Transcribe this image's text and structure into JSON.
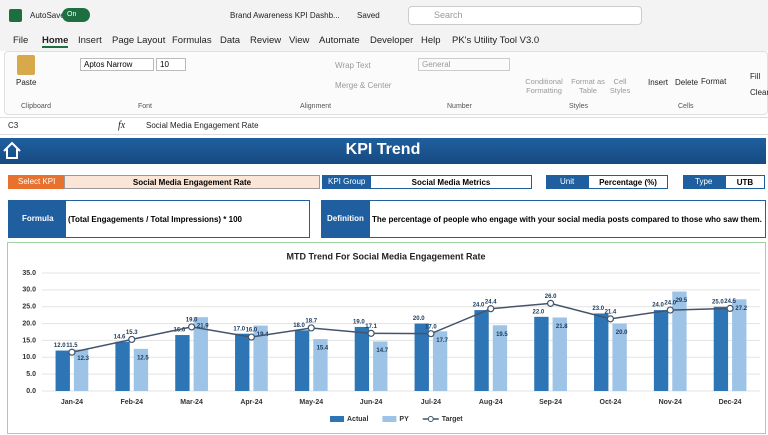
{
  "title_bar": {
    "autosave": "AutoSave",
    "toggle": "On",
    "file_name": "Brand Awareness KPI Dashb...",
    "saved": "Saved",
    "search": "Search"
  },
  "menu": [
    "File",
    "Home",
    "Insert",
    "Page Layout",
    "Formulas",
    "Data",
    "Review",
    "View",
    "Automate",
    "Developer",
    "Help",
    "PK's Utility Tool V3.0"
  ],
  "ribbon": {
    "paste": "Paste",
    "clipboard": "Clipboard",
    "font_name": "Aptos Narrow",
    "font_size": "10",
    "font": "Font",
    "wrap_text": "Wrap Text",
    "merge_center": "Merge & Center",
    "alignment": "Alignment",
    "number_format": "General",
    "number": "Number",
    "conditional_formatting": "Conditional Formatting",
    "format_as_table": "Format as Table",
    "cell_styles": "Cell Styles",
    "styles": "Styles",
    "insert": "Insert",
    "delete": "Delete",
    "format": "Format",
    "cells": "Cells",
    "fill": "Fill",
    "clear": "Clear"
  },
  "formula_bar": {
    "cell": "C3",
    "fx": "fx",
    "content": "Social Media Engagement Rate"
  },
  "dashboard": {
    "title": "KPI Trend",
    "select_kpi_label": "Select KPI",
    "select_kpi": "Social Media Engagement Rate",
    "kpi_group_label": "KPI Group",
    "kpi_group": "Social Media Metrics",
    "unit_label": "Unit",
    "unit": "Percentage (%)",
    "type_label": "Type",
    "type": "UTB",
    "formula_label": "Formula",
    "formula": "(Total Engagements / Total Impressions) * 100",
    "definition_label": "Definition",
    "definition": "The percentage of people who engage with your social media posts compared to those who saw them."
  },
  "chart_data": {
    "type": "bar",
    "title": "MTD Trend For Social Media Engagement Rate",
    "categories": [
      "Jan-24",
      "Feb-24",
      "Mar-24",
      "Apr-24",
      "May-24",
      "Jun-24",
      "Jul-24",
      "Aug-24",
      "Sep-24",
      "Oct-24",
      "Nov-24",
      "Dec-24"
    ],
    "series": [
      {
        "name": "Actual",
        "type": "bar",
        "color": "#2e75b6",
        "values": [
          12.0,
          14.6,
          16.6,
          17.0,
          18.0,
          19.0,
          20.0,
          24.0,
          22.0,
          23.0,
          24.0,
          25.0
        ],
        "value_labels": [
          "12.0",
          "14.6",
          "16.6",
          "17.0",
          "18.0",
          "19.0",
          "20.0",
          "24.0",
          "22.0",
          "23.0",
          "24.0",
          "25.0"
        ]
      },
      {
        "name": "PY",
        "type": "bar",
        "color": "#9dc3e6",
        "values": [
          12.3,
          12.5,
          21.9,
          19.4,
          15.4,
          14.7,
          17.7,
          19.5,
          21.8,
          20.0,
          29.5,
          27.2
        ],
        "value_labels": [
          "12.3",
          "12.5",
          "21.9",
          "19.4",
          "15.4",
          "14.7",
          "17.7",
          "19.5",
          "21.8",
          "20.0",
          "29.5",
          "27.2"
        ]
      },
      {
        "name": "Target",
        "type": "line",
        "color": "#44546a",
        "values": [
          11.5,
          15.3,
          19.0,
          16.0,
          18.7,
          17.1,
          17.0,
          24.4,
          26.0,
          21.4,
          24.0,
          24.5
        ],
        "value_labels": [
          "11.5",
          "15.3",
          "19.0",
          "16.0",
          "18.7",
          "17.1",
          "17.0",
          "24.4",
          "26.0",
          "21.4",
          "24.0",
          "24.5"
        ]
      }
    ],
    "ylim": [
      0,
      35
    ],
    "yticks": [
      {
        "value": 0,
        "label": "0.0"
      },
      {
        "value": 5,
        "label": "5.0"
      },
      {
        "value": 10,
        "label": "10.0"
      },
      {
        "value": 15,
        "label": "15.0"
      },
      {
        "value": 20,
        "label": "20.0"
      },
      {
        "value": 25,
        "label": "25.0"
      },
      {
        "value": 30,
        "label": "30.0"
      },
      {
        "value": 35,
        "label": "35.0"
      }
    ],
    "grid": true,
    "legend": "bottom"
  }
}
